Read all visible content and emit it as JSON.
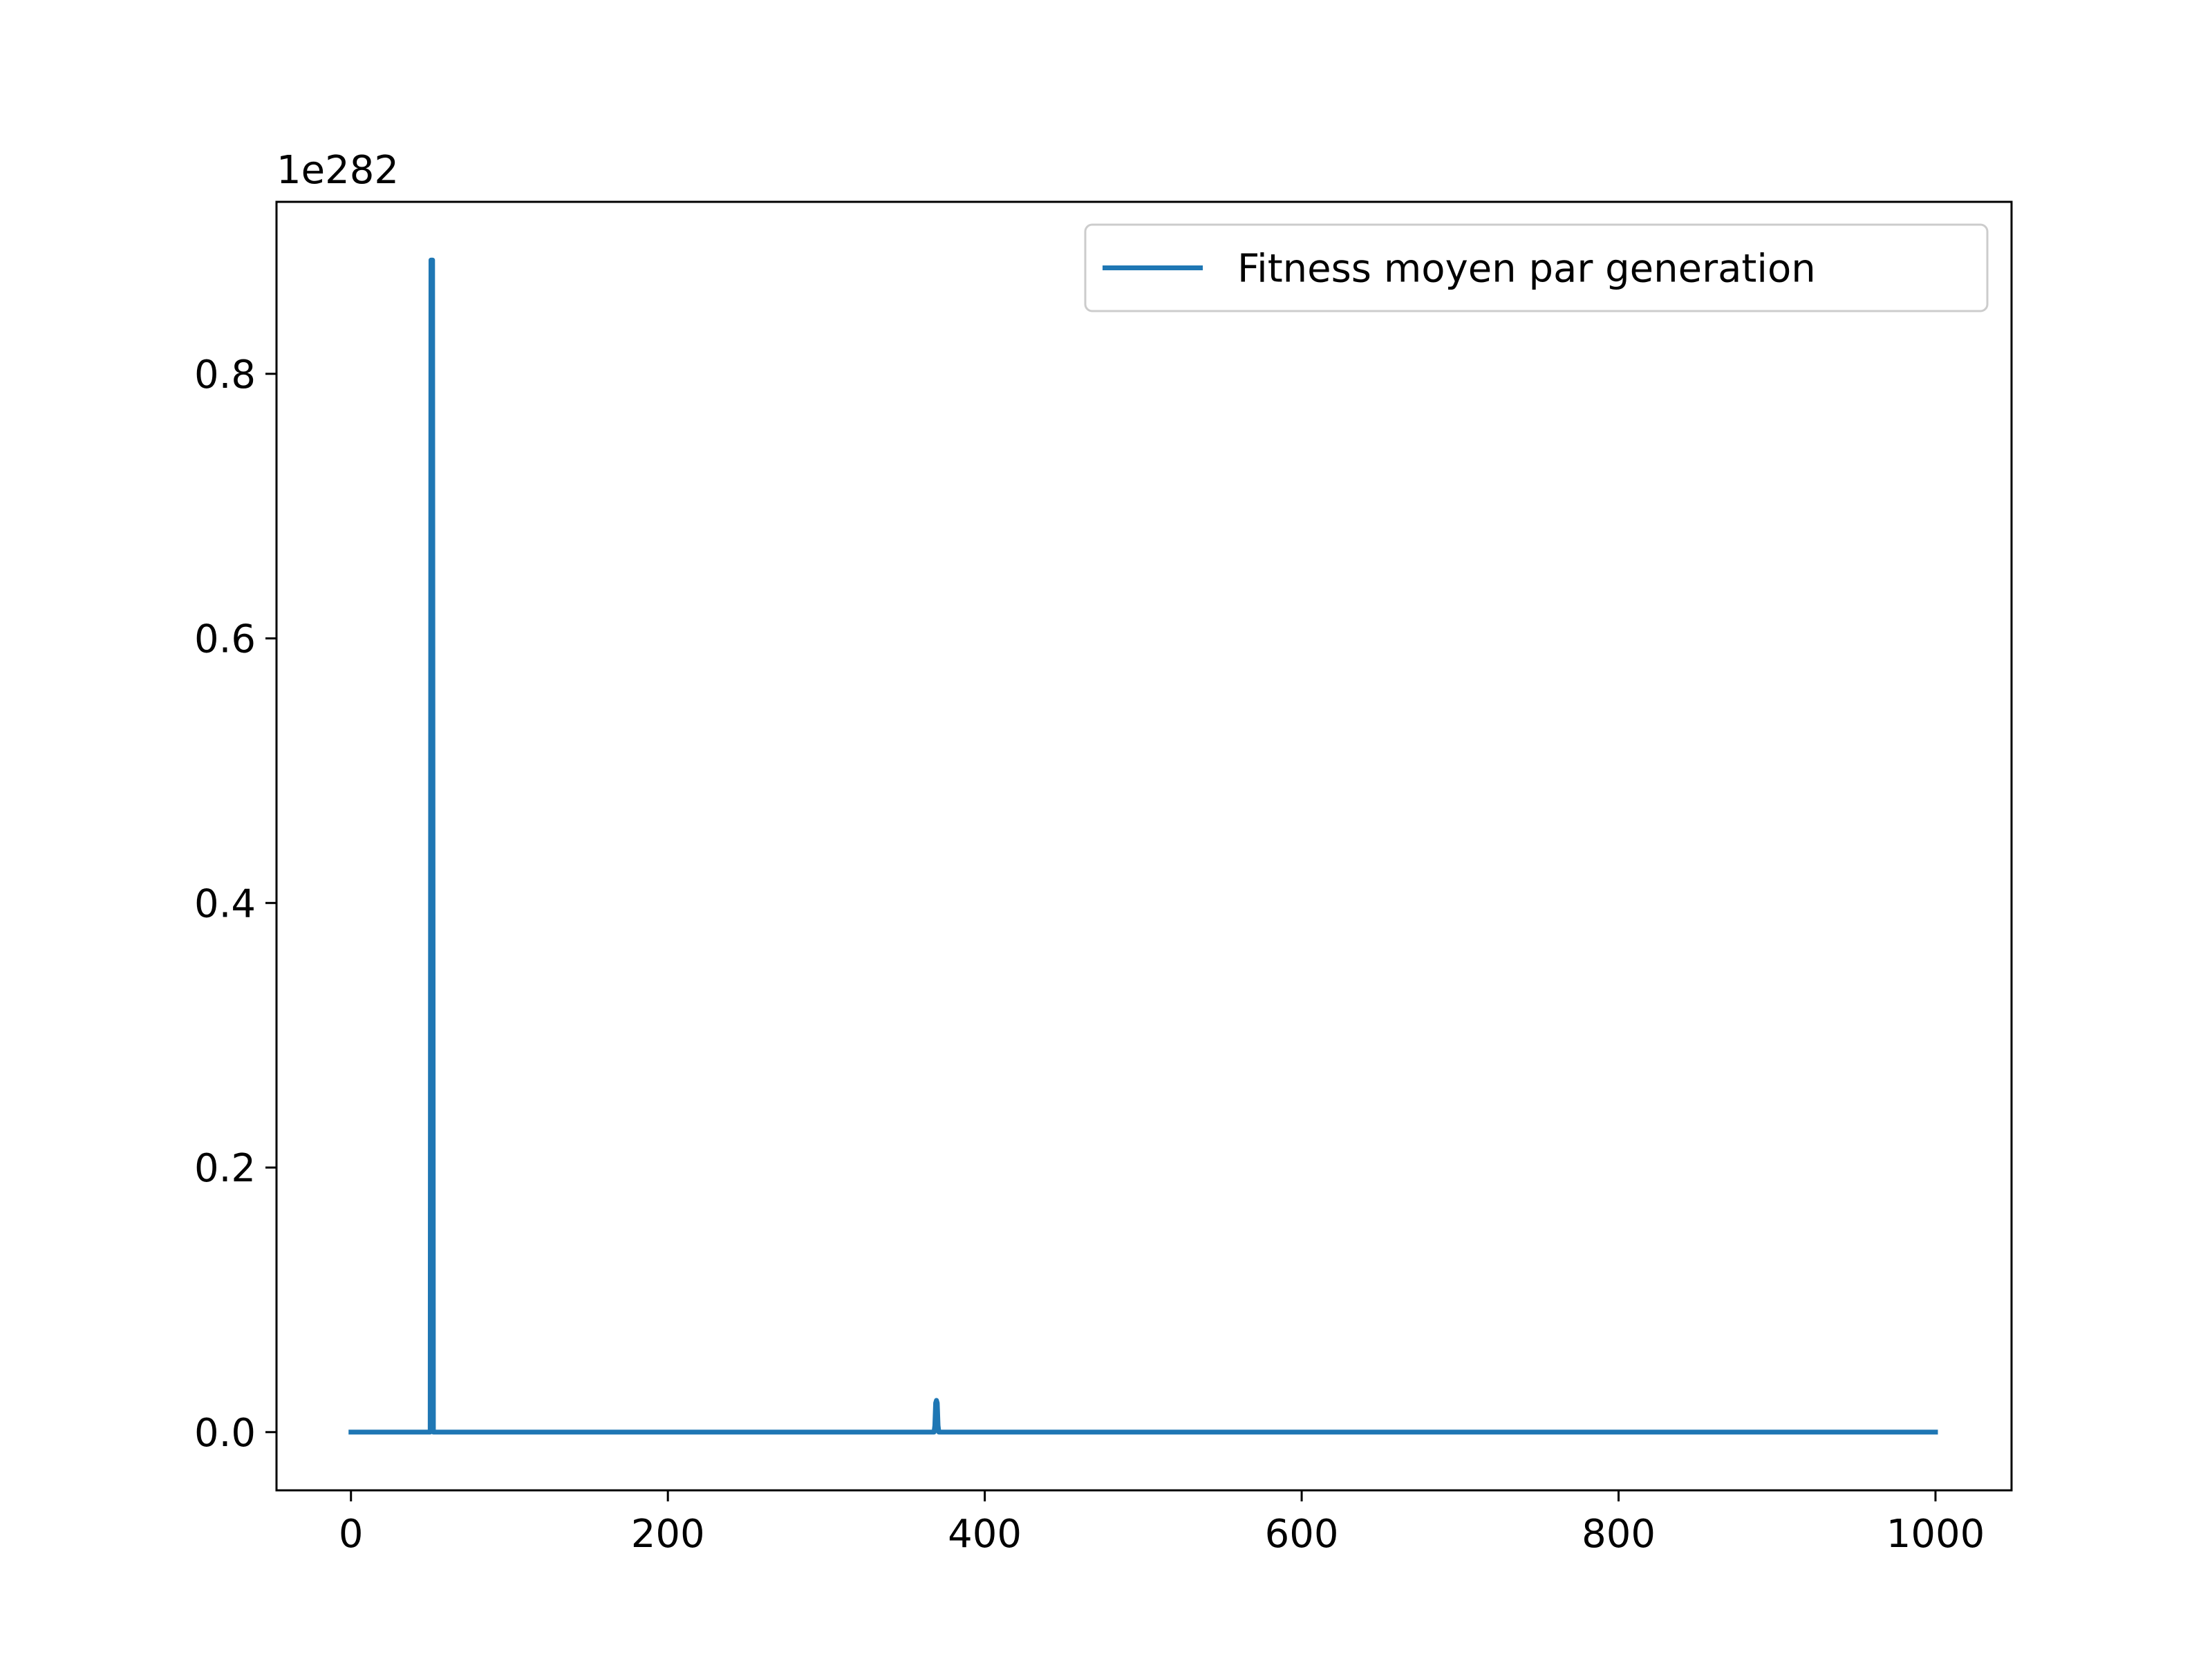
{
  "chart_data": {
    "type": "line",
    "title": "",
    "xlabel": "",
    "ylabel": "",
    "y_offset_label": "1e282",
    "xlim": [
      -47,
      1048
    ],
    "ylim": [
      -0.044,
      0.93
    ],
    "x_ticks": [
      0,
      200,
      400,
      600,
      800,
      1000
    ],
    "x_tick_labels": [
      "0",
      "200",
      "400",
      "600",
      "800",
      "1000"
    ],
    "y_ticks": [
      0.0,
      0.2,
      0.4,
      0.6,
      0.8
    ],
    "y_tick_labels": [
      "0.0",
      "0.2",
      "0.4",
      "0.6",
      "0.8"
    ],
    "grid": false,
    "legend_position": "top-right",
    "series": [
      {
        "name": "Fitness moyen par generation",
        "color": "#1f77b4",
        "x": [
          0,
          50,
          50.5,
          51,
          51.5,
          52,
          368,
          368.5,
          369,
          369.5,
          370,
          370.5,
          371,
          1000
        ],
        "y": [
          0,
          0,
          0.886,
          0.886,
          0.886,
          0,
          0,
          0.005,
          0.022,
          0.024,
          0.022,
          0.005,
          0,
          0
        ]
      }
    ]
  }
}
